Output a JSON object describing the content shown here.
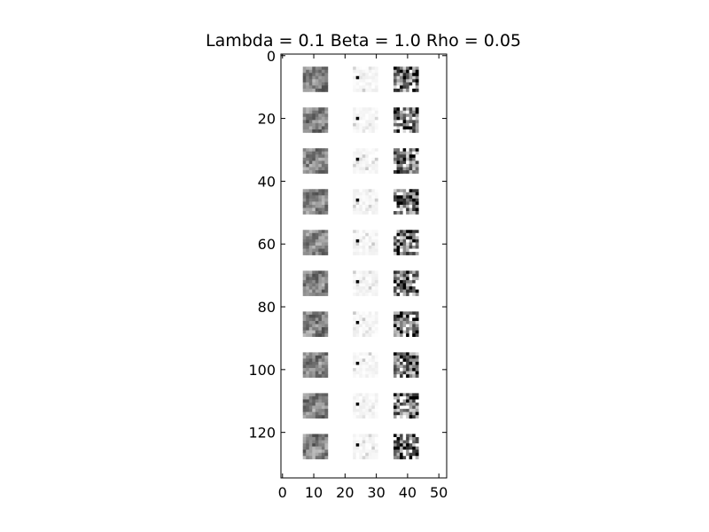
{
  "chart_data": {
    "type": "heatmap",
    "title": "Lambda = 0.1 Beta = 1.0 Rho = 0.05",
    "xlabel": "",
    "ylabel": "",
    "xlim": [
      -0.5,
      52.5
    ],
    "ylim": [
      134.5,
      -0.5
    ],
    "y_axis_inverted": true,
    "grid": false,
    "colormap": "gray",
    "background_color": "#ffffff",
    "x_ticks": [
      0,
      10,
      20,
      30,
      40,
      50
    ],
    "x_tick_labels": [
      "0",
      "10",
      "20",
      "30",
      "40",
      "50"
    ],
    "y_ticks": [
      0,
      20,
      40,
      60,
      80,
      100,
      120
    ],
    "y_tick_labels": [
      "0",
      "20",
      "40",
      "60",
      "80",
      "100",
      "120"
    ],
    "grid_layout": {
      "rows": 10,
      "columns": 3,
      "patch_size": 8,
      "column_x": [
        7,
        23,
        36
      ],
      "row_y": [
        4,
        17,
        30,
        43,
        56,
        69,
        82,
        95,
        108,
        121
      ]
    },
    "columns": [
      {
        "texture": "natural-patches",
        "mean_brightness": 0.55
      },
      {
        "texture": "sparse-dark-point",
        "mean_brightness": 0.95
      },
      {
        "texture": "random-noise",
        "mean_brightness": 0.5
      }
    ]
  }
}
